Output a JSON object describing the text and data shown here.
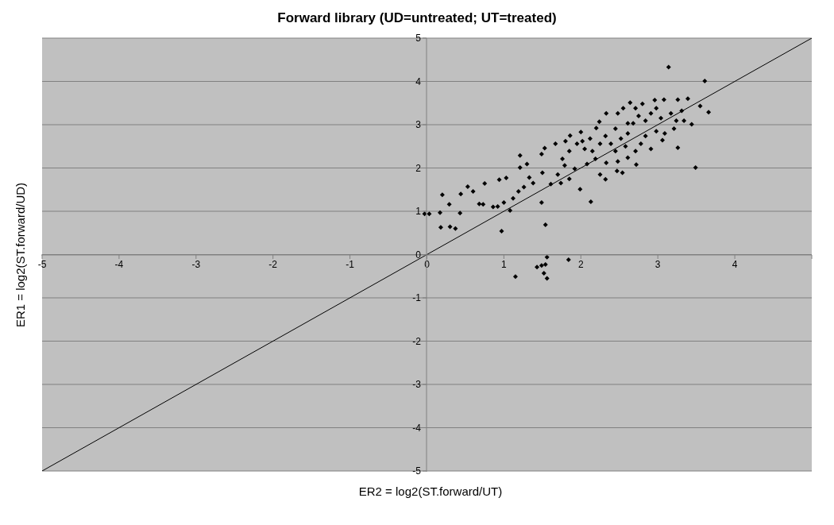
{
  "chart_data": {
    "type": "scatter",
    "title": "Forward library (UD=untreated; UT=treated)",
    "xlabel": "ER2 = log2(ST.forward/UT)",
    "ylabel": "ER1 = log2(ST.forward/UD)",
    "xlim": [
      -5,
      5
    ],
    "ylim": [
      -5,
      5
    ],
    "xticks": [
      -5,
      -4,
      -3,
      -2,
      -1,
      0,
      1,
      2,
      3,
      4,
      {
        "value": 5,
        "label": null
      }
    ],
    "yticks": [
      -5,
      -4,
      -3,
      -2,
      -1,
      0,
      1,
      2,
      3,
      4,
      5
    ],
    "grid": "y",
    "legend": false,
    "marker": "diamond",
    "series": [
      {
        "color": "#000000",
        "x": [
          3.14,
          3.61,
          3.66,
          3.55,
          3.49,
          3.26,
          3.06,
          3.44,
          3.39,
          3.26,
          3.08,
          2.96,
          2.8,
          2.64,
          2.55,
          2.33,
          2.24,
          2.2,
          2.0,
          1.86,
          1.8,
          1.67,
          1.53,
          1.49,
          1.21,
          1.3,
          1.21,
          1.03,
          0.94,
          0.75,
          0.53,
          0.6,
          0.44,
          0.2,
          0.29,
          0.17,
          -0.03,
          0.03,
          0.18,
          0.3,
          0.37,
          0.43,
          0.68,
          0.73,
          0.86,
          0.92,
          1.0,
          1.08,
          0.97,
          1.12,
          1.19,
          1.26,
          1.38,
          1.33,
          1.5,
          1.61,
          1.49,
          1.54,
          2.13,
          1.99,
          1.74,
          1.85,
          1.7,
          1.92,
          2.08,
          2.19,
          2.25,
          2.32,
          2.47,
          2.54,
          2.72,
          2.61,
          2.48,
          2.33,
          2.15,
          2.05,
          1.95,
          1.85,
          1.76,
          1.79,
          2.39,
          2.32,
          2.45,
          2.52,
          2.61,
          2.68,
          2.75,
          2.84,
          2.91,
          2.98,
          3.04,
          3.17,
          3.24,
          3.34,
          3.31,
          3.21,
          3.09,
          2.98,
          2.84,
          2.78,
          2.71,
          2.91,
          2.58,
          2.45,
          2.25,
          2.12,
          2.02,
          2.61,
          2.48,
          2.71,
          1.56,
          1.54,
          1.43,
          1.49,
          1.52,
          1.56,
          1.15,
          1.84
        ],
        "values": [
          4.33,
          4.01,
          3.29,
          3.43,
          2.01,
          2.47,
          2.64,
          3.01,
          3.6,
          3.58,
          3.58,
          3.57,
          3.48,
          3.51,
          3.38,
          3.26,
          3.07,
          2.92,
          2.83,
          2.75,
          2.62,
          2.56,
          2.46,
          2.32,
          2.29,
          2.09,
          2.01,
          1.77,
          1.73,
          1.64,
          1.57,
          1.46,
          1.4,
          1.38,
          1.16,
          0.97,
          0.94,
          0.94,
          0.63,
          0.64,
          0.6,
          0.96,
          1.17,
          1.16,
          1.1,
          1.11,
          1.2,
          1.02,
          0.54,
          1.3,
          1.46,
          1.56,
          1.65,
          1.78,
          1.89,
          1.63,
          1.2,
          0.69,
          1.22,
          1.51,
          1.65,
          1.75,
          1.85,
          1.98,
          2.09,
          2.21,
          1.85,
          1.74,
          1.93,
          1.89,
          2.08,
          2.24,
          2.15,
          2.12,
          2.39,
          2.44,
          2.56,
          2.39,
          2.21,
          2.06,
          2.56,
          2.74,
          2.91,
          2.68,
          2.8,
          3.03,
          3.2,
          3.09,
          3.26,
          3.38,
          3.15,
          3.26,
          3.09,
          3.09,
          3.32,
          2.91,
          2.8,
          2.85,
          2.74,
          2.56,
          2.39,
          2.44,
          2.5,
          2.39,
          2.56,
          2.68,
          2.62,
          3.03,
          3.26,
          3.38,
          -0.06,
          -0.23,
          -0.29,
          -0.25,
          -0.43,
          -0.55,
          -0.51,
          -0.12
        ]
      },
      {
        "type": "line",
        "color": "#000000",
        "marker": "none",
        "line_style": "solid",
        "x": [
          -5,
          5
        ],
        "values": [
          -5,
          5
        ]
      }
    ]
  }
}
